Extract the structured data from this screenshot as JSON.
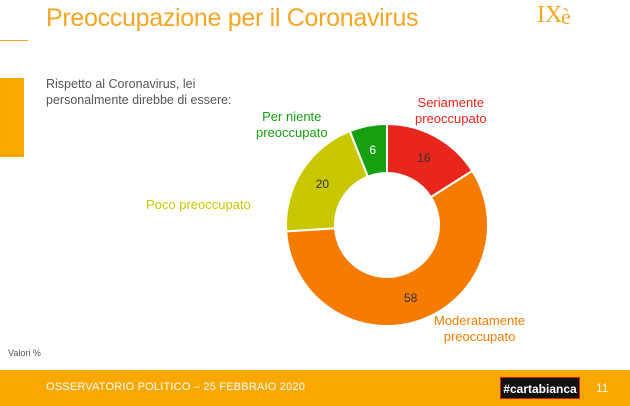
{
  "header": {
    "title": "Preoccupazione per il Coronavirus",
    "logo_text": "IXè"
  },
  "question": "Rispetto al Coronavirus, lei personalmente direbbe di essere:",
  "note": "Valori %",
  "footer": {
    "source": "OSSERVATORIO POLITICO – 25 FEBBRAIO 2020",
    "brand": "#cartabianca",
    "page": "11"
  },
  "colors": {
    "accent": "#f9a800",
    "title": "#f5a623"
  },
  "chart_data": {
    "type": "pie",
    "donut": true,
    "categories": [
      "Seriamente preoccupato",
      "Moderatamente preoccupato",
      "Poco preoccupato",
      "Per niente preoccupato"
    ],
    "values": [
      16,
      58,
      20,
      6
    ],
    "colors": [
      "#e8261c",
      "#f57c00",
      "#c9c800",
      "#16a00f"
    ],
    "label_colors": [
      "#e8261c",
      "#f57c00",
      "#c9c800",
      "#16a00f"
    ],
    "labels": {
      "serious": [
        "Seriamente",
        "preoccupato"
      ],
      "moderate": [
        "Moderatamente",
        "preoccupato"
      ],
      "little": [
        "Poco preoccupato"
      ],
      "none": [
        "Per niente",
        "preoccupato"
      ]
    }
  }
}
